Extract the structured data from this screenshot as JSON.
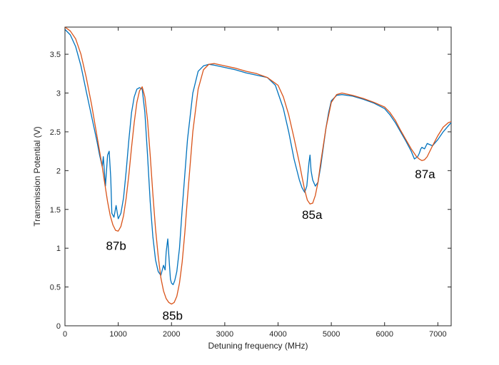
{
  "chart_data": {
    "type": "line",
    "title": "",
    "xlabel": "Detuning frequency (MHz)",
    "ylabel": "Transmission Potential (V)",
    "xlim": [
      0,
      7250
    ],
    "ylim": [
      0,
      3.85
    ],
    "grid": false,
    "x_ticks": [
      0,
      1000,
      2000,
      3000,
      4000,
      5000,
      6000,
      7000
    ],
    "y_ticks": [
      0,
      0.5,
      1,
      1.5,
      2,
      2.5,
      3,
      3.5
    ],
    "x_tick_labels": [
      "0",
      "1000",
      "2000",
      "3000",
      "4000",
      "5000",
      "6000",
      "7000"
    ],
    "y_tick_labels": [
      "0",
      "0.5",
      "1",
      "1.5",
      "2",
      "2.5",
      "3",
      "3.5"
    ],
    "series": [
      {
        "color": "#0072BD",
        "x": [
          0,
          100,
          200,
          300,
          400,
          500,
          600,
          650,
          700,
          720,
          760,
          800,
          830,
          860,
          880,
          920,
          960,
          1000,
          1050,
          1100,
          1150,
          1200,
          1250,
          1300,
          1350,
          1400,
          1450,
          1500,
          1550,
          1600,
          1650,
          1700,
          1750,
          1800,
          1850,
          1880,
          1900,
          1930,
          1960,
          1980,
          2000,
          2030,
          2060,
          2100,
          2150,
          2200,
          2300,
          2400,
          2500,
          2600,
          2700,
          2800,
          3000,
          3200,
          3400,
          3600,
          3800,
          3950,
          4000,
          4100,
          4200,
          4300,
          4400,
          4450,
          4500,
          4540,
          4580,
          4600,
          4620,
          4650,
          4700,
          4750,
          4800,
          4850,
          4900,
          4950,
          5000,
          5100,
          5200,
          5400,
          5600,
          5800,
          6000,
          6100,
          6200,
          6300,
          6400,
          6500,
          6560,
          6620,
          6650,
          6680,
          6700,
          6750,
          6800,
          6900,
          7000,
          7100,
          7200,
          7250
        ],
        "y": [
          3.82,
          3.75,
          3.6,
          3.35,
          3.02,
          2.7,
          2.38,
          2.2,
          2.05,
          2.18,
          1.8,
          2.2,
          2.25,
          1.9,
          1.45,
          1.4,
          1.55,
          1.38,
          1.45,
          1.65,
          2.0,
          2.4,
          2.75,
          2.95,
          3.05,
          3.07,
          3.05,
          2.75,
          2.2,
          1.6,
          1.15,
          0.85,
          0.7,
          0.65,
          0.78,
          0.72,
          0.95,
          1.12,
          0.8,
          0.6,
          0.55,
          0.53,
          0.58,
          0.7,
          1.0,
          1.5,
          2.4,
          3.0,
          3.28,
          3.35,
          3.37,
          3.36,
          3.33,
          3.3,
          3.26,
          3.23,
          3.2,
          3.1,
          3.0,
          2.8,
          2.5,
          2.15,
          1.88,
          1.78,
          1.72,
          1.8,
          2.1,
          2.2,
          2.0,
          1.88,
          1.8,
          1.85,
          2.05,
          2.3,
          2.55,
          2.75,
          2.9,
          2.97,
          2.98,
          2.96,
          2.92,
          2.87,
          2.8,
          2.72,
          2.62,
          2.5,
          2.38,
          2.25,
          2.15,
          2.18,
          2.22,
          2.28,
          2.3,
          2.28,
          2.35,
          2.32,
          2.4,
          2.5,
          2.58,
          2.62
        ]
      },
      {
        "color": "#D95319",
        "x": [
          0,
          100,
          200,
          300,
          400,
          500,
          600,
          700,
          750,
          800,
          850,
          900,
          950,
          1000,
          1050,
          1100,
          1150,
          1200,
          1250,
          1300,
          1350,
          1400,
          1450,
          1500,
          1550,
          1600,
          1650,
          1700,
          1750,
          1800,
          1850,
          1900,
          1950,
          2000,
          2050,
          2100,
          2150,
          2200,
          2250,
          2300,
          2400,
          2500,
          2600,
          2700,
          2800,
          3000,
          3200,
          3400,
          3600,
          3800,
          4000,
          4100,
          4200,
          4300,
          4400,
          4450,
          4500,
          4550,
          4600,
          4650,
          4700,
          4750,
          4800,
          4900,
          5000,
          5100,
          5200,
          5400,
          5600,
          5800,
          6000,
          6100,
          6200,
          6300,
          6400,
          6500,
          6600,
          6650,
          6700,
          6750,
          6800,
          6850,
          6900,
          7000,
          7100,
          7200,
          7250
        ],
        "y": [
          3.85,
          3.8,
          3.7,
          3.5,
          3.2,
          2.85,
          2.45,
          2.05,
          1.82,
          1.6,
          1.42,
          1.3,
          1.23,
          1.22,
          1.28,
          1.42,
          1.65,
          1.95,
          2.3,
          2.62,
          2.88,
          3.03,
          3.08,
          2.95,
          2.65,
          2.2,
          1.7,
          1.25,
          0.9,
          0.62,
          0.45,
          0.35,
          0.3,
          0.28,
          0.3,
          0.38,
          0.55,
          0.82,
          1.2,
          1.65,
          2.5,
          3.05,
          3.3,
          3.37,
          3.38,
          3.35,
          3.32,
          3.28,
          3.25,
          3.2,
          3.1,
          2.95,
          2.72,
          2.42,
          2.1,
          1.92,
          1.75,
          1.62,
          1.57,
          1.58,
          1.68,
          1.85,
          2.1,
          2.55,
          2.88,
          2.98,
          3.0,
          2.97,
          2.93,
          2.88,
          2.82,
          2.75,
          2.65,
          2.52,
          2.4,
          2.28,
          2.18,
          2.15,
          2.13,
          2.14,
          2.18,
          2.25,
          2.32,
          2.45,
          2.56,
          2.62,
          2.63
        ]
      }
    ],
    "annotations": [
      {
        "text": "87b",
        "x": 960,
        "y": 0.98
      },
      {
        "text": "85b",
        "x": 2020,
        "y": 0.08
      },
      {
        "text": "85a",
        "x": 4640,
        "y": 1.38
      },
      {
        "text": "87a",
        "x": 6760,
        "y": 1.9
      }
    ]
  }
}
